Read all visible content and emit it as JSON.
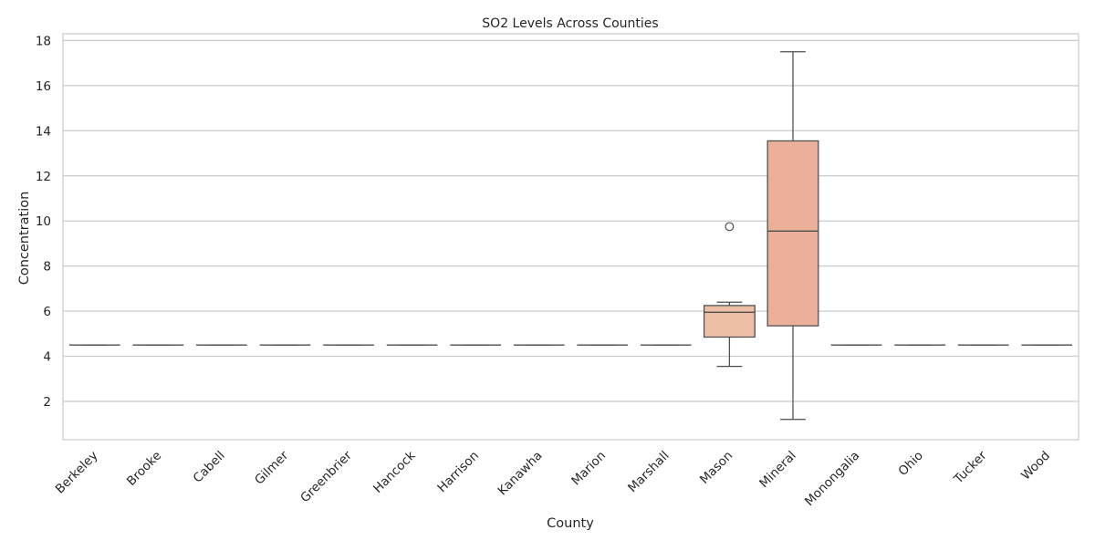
{
  "chart_data": {
    "type": "box",
    "title": "SO2 Levels Across Counties",
    "xlabel": "County",
    "ylabel": "Concentration",
    "ylim": [
      0.3,
      18.3
    ],
    "yticks": [
      2,
      4,
      6,
      8,
      10,
      12,
      14,
      16,
      18
    ],
    "grid": "horizontal",
    "categories": [
      "Berkeley",
      "Brooke",
      "Cabell",
      "Gilmer",
      "Greenbrier",
      "Hancock",
      "Harrison",
      "Kanawha",
      "Marion",
      "Marshall",
      "Mason",
      "Mineral",
      "Monongalia",
      "Ohio",
      "Tucker",
      "Wood"
    ],
    "boxes": [
      {
        "category": "Berkeley",
        "q1": 4.5,
        "median": 4.5,
        "q3": 4.5,
        "whisker_low": 4.5,
        "whisker_high": 4.5,
        "outliers": [],
        "color": "#fef0e8"
      },
      {
        "category": "Brooke",
        "q1": 4.5,
        "median": 4.5,
        "q3": 4.5,
        "whisker_low": 4.5,
        "whisker_high": 4.5,
        "outliers": [],
        "color": "#fdece2"
      },
      {
        "category": "Cabell",
        "q1": 4.5,
        "median": 4.5,
        "q3": 4.5,
        "whisker_low": 4.5,
        "whisker_high": 4.5,
        "outliers": [],
        "color": "#fce7dc"
      },
      {
        "category": "Gilmer",
        "q1": 4.5,
        "median": 4.5,
        "q3": 4.5,
        "whisker_low": 4.5,
        "whisker_high": 4.5,
        "outliers": [],
        "color": "#fbe2d5"
      },
      {
        "category": "Greenbrier",
        "q1": 4.5,
        "median": 4.5,
        "q3": 4.5,
        "whisker_low": 4.5,
        "whisker_high": 4.5,
        "outliers": [],
        "color": "#f9ddce"
      },
      {
        "category": "Hancock",
        "q1": 4.5,
        "median": 4.5,
        "q3": 4.5,
        "whisker_low": 4.5,
        "whisker_high": 4.5,
        "outliers": [],
        "color": "#f8d8c7"
      },
      {
        "category": "Harrison",
        "q1": 4.5,
        "median": 4.5,
        "q3": 4.5,
        "whisker_low": 4.5,
        "whisker_high": 4.5,
        "outliers": [],
        "color": "#f6d2bf"
      },
      {
        "category": "Kanawha",
        "q1": 4.5,
        "median": 4.5,
        "q3": 4.5,
        "whisker_low": 4.5,
        "whisker_high": 4.5,
        "outliers": [],
        "color": "#f4ccb7"
      },
      {
        "category": "Marion",
        "q1": 4.5,
        "median": 4.5,
        "q3": 4.5,
        "whisker_low": 4.5,
        "whisker_high": 4.5,
        "outliers": [],
        "color": "#f2c6b0"
      },
      {
        "category": "Marshall",
        "q1": 4.5,
        "median": 4.5,
        "q3": 4.5,
        "whisker_low": 4.5,
        "whisker_high": 4.5,
        "outliers": [],
        "color": "#f0c0a8"
      },
      {
        "category": "Mason",
        "q1": 4.85,
        "median": 5.95,
        "q3": 6.25,
        "whisker_low": 3.55,
        "whisker_high": 6.4,
        "outliers": [
          9.75
        ],
        "color": "#ecbfa6"
      },
      {
        "category": "Mineral",
        "q1": 5.35,
        "median": 9.55,
        "q3": 13.55,
        "whisker_low": 1.2,
        "whisker_high": 17.5,
        "outliers": [],
        "color": "#ebb099"
      },
      {
        "category": "Monongalia",
        "q1": 4.5,
        "median": 4.5,
        "q3": 4.5,
        "whisker_low": 4.5,
        "whisker_high": 4.5,
        "outliers": [],
        "color": "#e8a48c"
      },
      {
        "category": "Ohio",
        "q1": 4.5,
        "median": 4.5,
        "q3": 4.5,
        "whisker_low": 4.5,
        "whisker_high": 4.5,
        "outliers": [],
        "color": "#e69b82"
      },
      {
        "category": "Tucker",
        "q1": 4.5,
        "median": 4.5,
        "q3": 4.5,
        "whisker_low": 4.5,
        "whisker_high": 4.5,
        "outliers": [],
        "color": "#e39178"
      },
      {
        "category": "Wood",
        "q1": 4.5,
        "median": 4.5,
        "q3": 4.5,
        "whisker_low": 4.5,
        "whisker_high": 4.5,
        "outliers": [],
        "color": "#e0876e"
      }
    ]
  }
}
